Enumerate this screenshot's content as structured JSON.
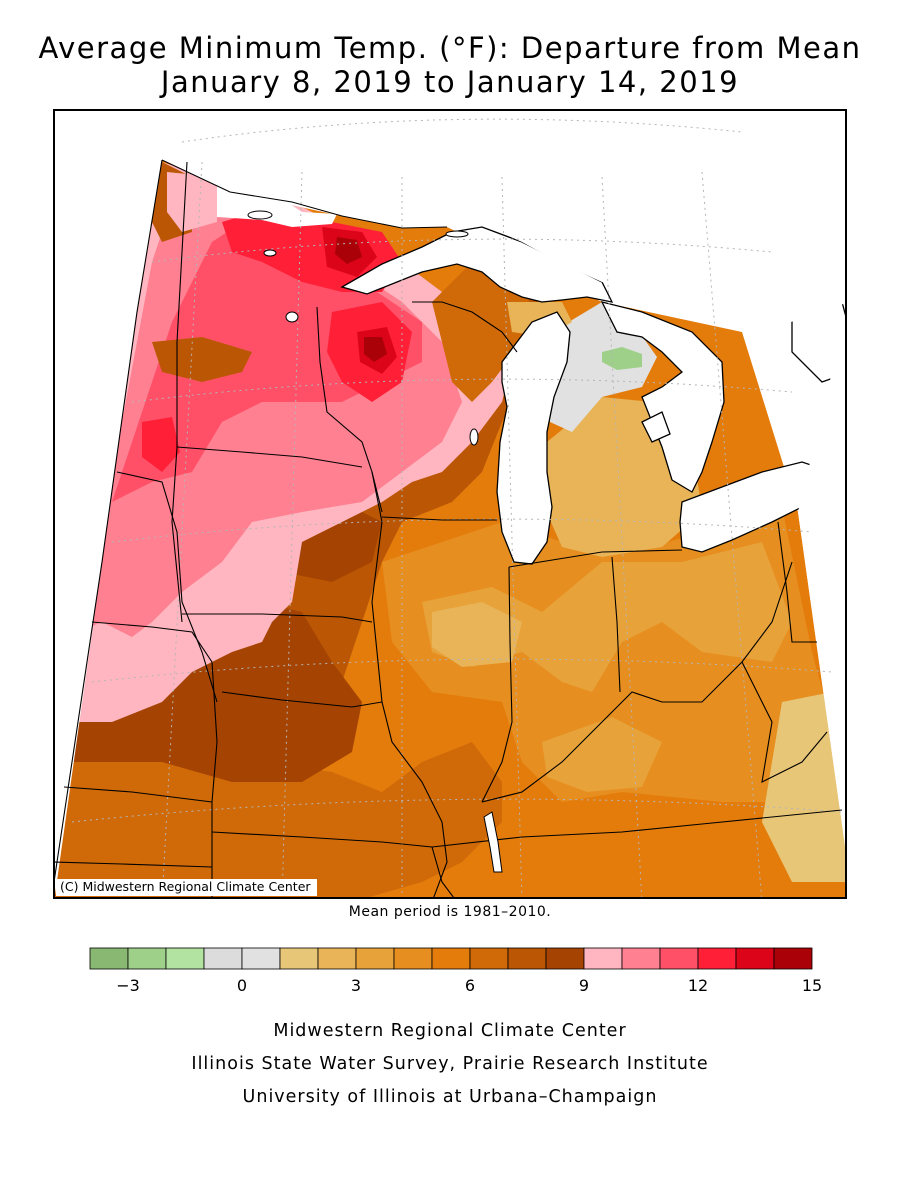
{
  "title": {
    "line1": "Average Minimum Temp. (°F): Departure from Mean",
    "line2": "January 8, 2019 to January 14, 2019"
  },
  "map": {
    "copyright": "(C) Midwestern Regional Climate Center",
    "mean_period": "Mean period is 1981–2010."
  },
  "legend": {
    "unit": "°F departure",
    "bins": [
      {
        "from": -4,
        "to": -3,
        "color": "#88b872"
      },
      {
        "from": -3,
        "to": -2,
        "color": "#9ed08a"
      },
      {
        "from": -2,
        "to": -1,
        "color": "#b3e3a0"
      },
      {
        "from": -1,
        "to": 0,
        "color": "#dcdcdc"
      },
      {
        "from": 0,
        "to": 1,
        "color": "#e1e1e1"
      },
      {
        "from": 1,
        "to": 2,
        "color": "#e8c677"
      },
      {
        "from": 2,
        "to": 3,
        "color": "#e8b457"
      },
      {
        "from": 3,
        "to": 4,
        "color": "#e8a23a"
      },
      {
        "from": 4,
        "to": 5,
        "color": "#e68e1f"
      },
      {
        "from": 5,
        "to": 6,
        "color": "#e47c0c"
      },
      {
        "from": 6,
        "to": 7,
        "color": "#d06a08"
      },
      {
        "from": 7,
        "to": 8,
        "color": "#bb5704"
      },
      {
        "from": 8,
        "to": 9,
        "color": "#a54402"
      },
      {
        "from": 9,
        "to": 10,
        "color": "#ffb6c1"
      },
      {
        "from": 10,
        "to": 11,
        "color": "#ff8090"
      },
      {
        "from": 11,
        "to": 12,
        "color": "#ff5068"
      },
      {
        "from": 12,
        "to": 13,
        "color": "#ff2038"
      },
      {
        "from": 13,
        "to": 14,
        "color": "#dc0418"
      },
      {
        "from": 14,
        "to": 15,
        "color": "#aa0008"
      }
    ],
    "tick_labels": [
      "−3",
      "0",
      "3",
      "6",
      "9",
      "12",
      "15"
    ]
  },
  "footer": {
    "line1": "Midwestern Regional Climate Center",
    "line2": "Illinois State Water Survey, Prairie Research Institute",
    "line3": "University of Illinois at Urbana–Champaign"
  },
  "colors": {
    "lake": "#ffffff",
    "boundary": "#000000",
    "grid": "#b5b5b5"
  }
}
